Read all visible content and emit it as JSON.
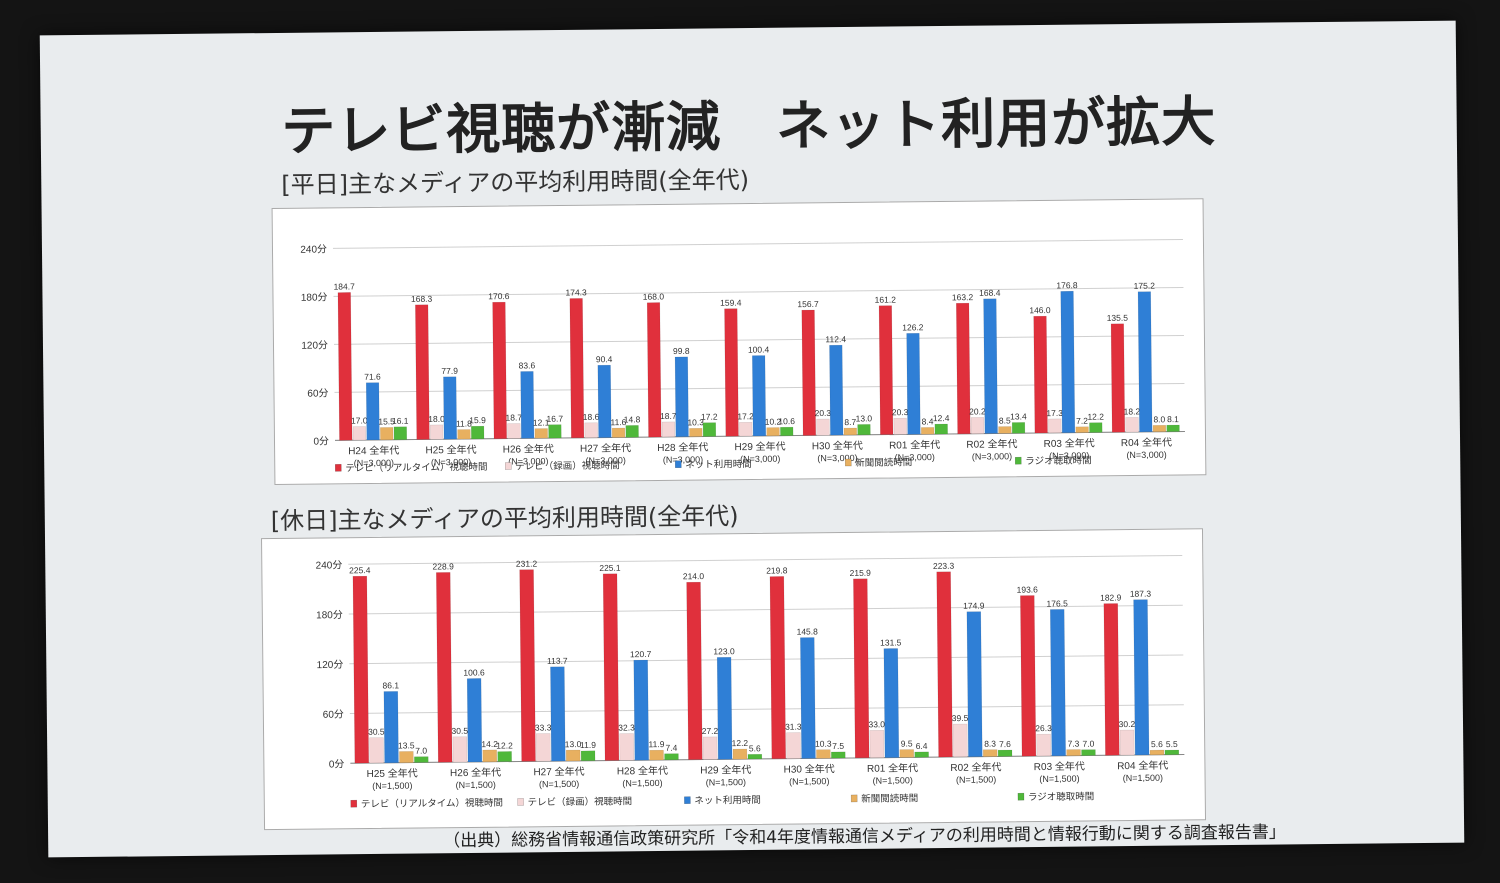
{
  "slide": {
    "title": "テレビ視聴が漸減　ネット利用が拡大",
    "source": "（出典）総務省情報通信政策研究所「令和4年度情報通信メディアの利用時間と情報行動に関する調査報告書」"
  },
  "colors": {
    "tv_realtime": "#e0303c",
    "tv_recorded": "#f4d6d6",
    "internet": "#2f7fd6",
    "newspaper": "#e8b060",
    "radio": "#4fb83a"
  },
  "chart_data": [
    {
      "type": "bar",
      "title": "[平日]主なメディアの平均利用時間(全年代)",
      "categories": [
        [
          "H24 全年代",
          "(N=3,000)"
        ],
        [
          "H25 全年代",
          "(N=3,000)"
        ],
        [
          "H26 全年代",
          "(N=3,000)"
        ],
        [
          "H27 全年代",
          "(N=3,000)"
        ],
        [
          "H28 全年代",
          "(N=3,000)"
        ],
        [
          "H29 全年代",
          "(N=3,000)"
        ],
        [
          "H30 全年代",
          "(N=3,000)"
        ],
        [
          "R01 全年代",
          "(N=3,000)"
        ],
        [
          "R02 全年代",
          "(N=3,000)"
        ],
        [
          "R03 全年代",
          "(N=3,000)"
        ],
        [
          "R04 全年代",
          "(N=3,000)"
        ]
      ],
      "ylim": [
        0,
        240
      ],
      "yticks": [
        "0分",
        "60分",
        "120分",
        "180分",
        "240分"
      ],
      "grid": true,
      "legend_position": "bottom",
      "series": [
        {
          "name": "テレビ（リアルタイム）視聴時間",
          "color_key": "tv_realtime",
          "values": [
            184.7,
            168.3,
            170.6,
            174.3,
            168.0,
            159.4,
            156.7,
            161.2,
            163.2,
            146.0,
            135.5
          ]
        },
        {
          "name": "テレビ（録画）視聴時間",
          "color_key": "tv_recorded",
          "values": [
            17.0,
            18.0,
            18.7,
            18.6,
            18.7,
            17.2,
            20.3,
            20.3,
            20.2,
            17.3,
            18.2
          ]
        },
        {
          "name": "ネット利用時間",
          "color_key": "internet",
          "values": [
            71.6,
            77.9,
            83.6,
            90.4,
            99.8,
            100.4,
            112.4,
            126.2,
            168.4,
            176.8,
            175.2
          ]
        },
        {
          "name": "新聞閲読時間",
          "color_key": "newspaper",
          "values": [
            15.5,
            11.8,
            12.1,
            11.6,
            10.3,
            10.2,
            8.7,
            8.4,
            8.5,
            7.2,
            8.0
          ]
        },
        {
          "name": "ラジオ聴取時間",
          "color_key": "radio",
          "values": [
            16.1,
            15.9,
            16.7,
            14.8,
            17.2,
            10.6,
            13.0,
            12.4,
            13.4,
            12.2,
            8.1
          ]
        }
      ]
    },
    {
      "type": "bar",
      "title": "[休日]主なメディアの平均利用時間(全年代)",
      "categories": [
        [
          "H25 全年代",
          "(N=1,500)"
        ],
        [
          "H26 全年代",
          "(N=1,500)"
        ],
        [
          "H27 全年代",
          "(N=1,500)"
        ],
        [
          "H28 全年代",
          "(N=1,500)"
        ],
        [
          "H29 全年代",
          "(N=1,500)"
        ],
        [
          "H30 全年代",
          "(N=1,500)"
        ],
        [
          "R01 全年代",
          "(N=1,500)"
        ],
        [
          "R02 全年代",
          "(N=1,500)"
        ],
        [
          "R03 全年代",
          "(N=1,500)"
        ],
        [
          "R04 全年代",
          "(N=1,500)"
        ]
      ],
      "ylim": [
        0,
        240
      ],
      "yticks": [
        "0分",
        "60分",
        "120分",
        "180分",
        "240分"
      ],
      "grid": true,
      "legend_position": "bottom",
      "series": [
        {
          "name": "テレビ（リアルタイム）視聴時間",
          "color_key": "tv_realtime",
          "values": [
            225.4,
            228.9,
            231.2,
            225.1,
            214.0,
            219.8,
            215.9,
            223.3,
            193.6,
            182.9
          ]
        },
        {
          "name": "テレビ（録画）視聴時間",
          "color_key": "tv_recorded",
          "values": [
            30.5,
            30.5,
            33.3,
            32.3,
            27.2,
            31.3,
            33.0,
            39.5,
            26.3,
            30.2
          ]
        },
        {
          "name": "ネット利用時間",
          "color_key": "internet",
          "values": [
            86.1,
            100.6,
            113.7,
            120.7,
            123.0,
            145.8,
            131.5,
            174.9,
            176.5,
            187.3
          ]
        },
        {
          "name": "新聞閲読時間",
          "color_key": "newspaper",
          "values": [
            13.5,
            14.2,
            13.0,
            11.9,
            12.2,
            10.3,
            9.5,
            8.3,
            7.3,
            5.6
          ]
        },
        {
          "name": "ラジオ聴取時間",
          "color_key": "radio",
          "values": [
            7.0,
            12.2,
            11.9,
            7.4,
            5.6,
            7.5,
            6.4,
            7.6,
            7.0,
            5.5
          ]
        }
      ]
    }
  ]
}
